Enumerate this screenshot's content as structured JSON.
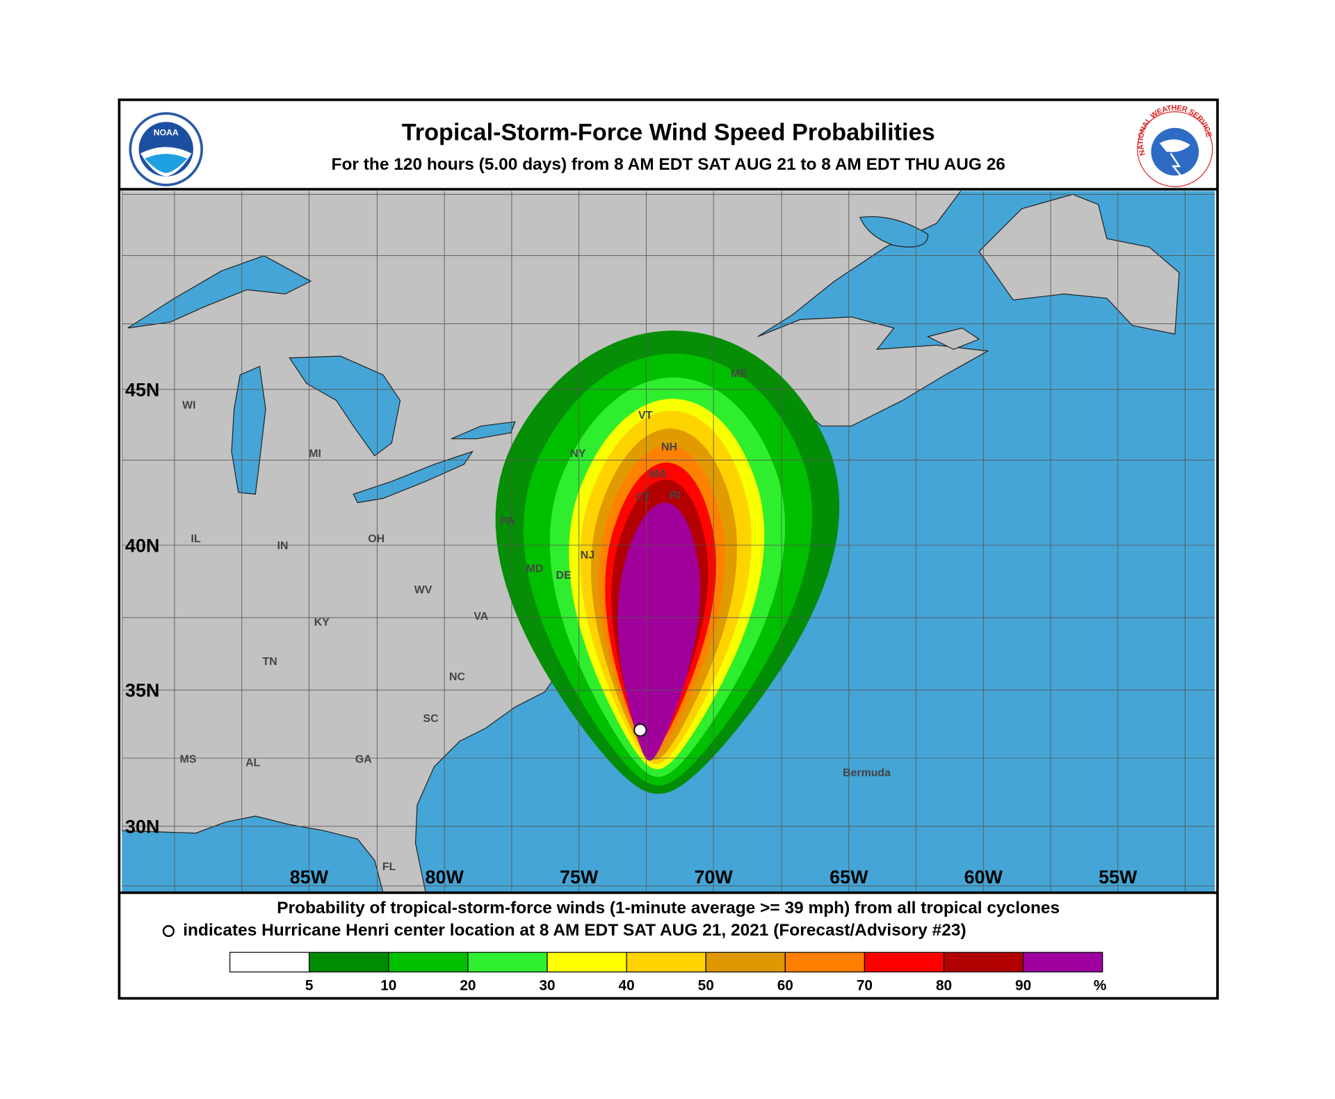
{
  "header": {
    "title": "Tropical-Storm-Force Wind Speed Probabilities",
    "subtitle": "For the 120 hours (5.00 days) from 8 AM EDT SAT AUG 21 to 8 AM EDT THU AUG 26",
    "logos": {
      "left": "NOAA",
      "right": "NATIONAL WEATHER SERVICE"
    }
  },
  "map": {
    "latitude_labels": [
      "45N",
      "40N",
      "35N",
      "30N"
    ],
    "longitude_labels": [
      "85W",
      "80W",
      "75W",
      "70W",
      "65W",
      "60W",
      "55W"
    ],
    "region_labels": [
      "WI",
      "MI",
      "IL",
      "IN",
      "OH",
      "PA",
      "NY",
      "VT",
      "NH",
      "ME",
      "MA",
      "CT",
      "RI",
      "NJ",
      "DE",
      "MD",
      "WV",
      "VA",
      "KY",
      "TN",
      "NC",
      "SC",
      "MS",
      "AL",
      "GA",
      "FL",
      "Bermuda"
    ]
  },
  "footer": {
    "description": "Probability of tropical-storm-force winds (1-minute average >= 39 mph) from all tropical cyclones",
    "storm_note": "indicates Hurricane Henri center location at 8 AM EDT SAT AUG 21, 2021 (Forecast/Advisory #23)",
    "legend": {
      "bins": [
        {
          "color": "#ffffff"
        },
        {
          "color": "#008c00"
        },
        {
          "color": "#00c000"
        },
        {
          "color": "#2ff02f"
        },
        {
          "color": "#ffff00"
        },
        {
          "color": "#ffd200"
        },
        {
          "color": "#e09800"
        },
        {
          "color": "#ff8000"
        },
        {
          "color": "#ff0000"
        },
        {
          "color": "#b00000"
        },
        {
          "color": "#a000a0"
        }
      ],
      "tick_labels": [
        "5",
        "10",
        "20",
        "30",
        "40",
        "50",
        "60",
        "70",
        "80",
        "90"
      ],
      "unit": "%"
    }
  }
}
